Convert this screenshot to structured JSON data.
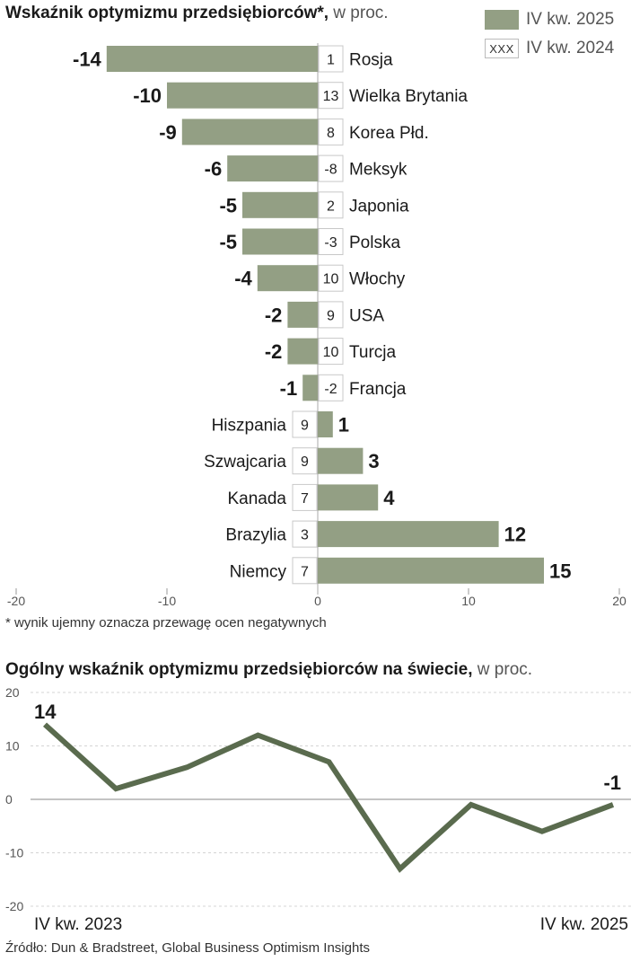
{
  "colors": {
    "bar": "#939f84",
    "line": "#5a6b4e",
    "grid": "#cfcfcf",
    "box_border": "#c8c8c8"
  },
  "legend": {
    "current_label": "IV kw. 2025",
    "previous_label": "IV kw. 2024",
    "previous_marker": "XXX"
  },
  "footnote": "* wynik ujemny oznacza przewagę ocen negatywnych",
  "source": "Źródło: Dun & Bradstreet, Global Business Optimism Insights",
  "chart_data": [
    {
      "type": "bar",
      "orientation": "horizontal",
      "title_bold": "Wskaźnik optymizmu przedsiębiorców*,",
      "title_light": " w proc.",
      "categories": [
        "Rosja",
        "Wielka Brytania",
        "Korea Płd.",
        "Meksyk",
        "Japonia",
        "Polska",
        "Włochy",
        "USA",
        "Turcja",
        "Francja",
        "Hiszpania",
        "Szwajcaria",
        "Kanada",
        "Brazylia",
        "Niemcy"
      ],
      "series": [
        {
          "name": "IV kw. 2025",
          "values": [
            -14,
            -10,
            -9,
            -6,
            -5,
            -5,
            -4,
            -2,
            -2,
            -1,
            1,
            3,
            4,
            12,
            15
          ]
        },
        {
          "name": "IV kw. 2024",
          "values": [
            1,
            13,
            8,
            -8,
            2,
            -3,
            10,
            9,
            10,
            -2,
            9,
            9,
            7,
            3,
            7
          ]
        }
      ],
      "xlim": [
        -20,
        20
      ],
      "xticks": [
        -20,
        -10,
        0,
        10,
        20
      ]
    },
    {
      "type": "line",
      "title_bold": "Ogólny wskaźnik optymizmu przedsiębiorców na świecie,",
      "title_light": " w proc.",
      "values": [
        14,
        2,
        6,
        12,
        7,
        -13,
        -1,
        -6,
        -1
      ],
      "ylim": [
        -20,
        20
      ],
      "yticks": [
        20,
        10,
        0,
        -10,
        -20
      ],
      "x_start_label": "IV kw. 2023",
      "x_end_label": "IV kw. 2025",
      "start_value_label": "14",
      "end_value_label": "-1"
    }
  ]
}
